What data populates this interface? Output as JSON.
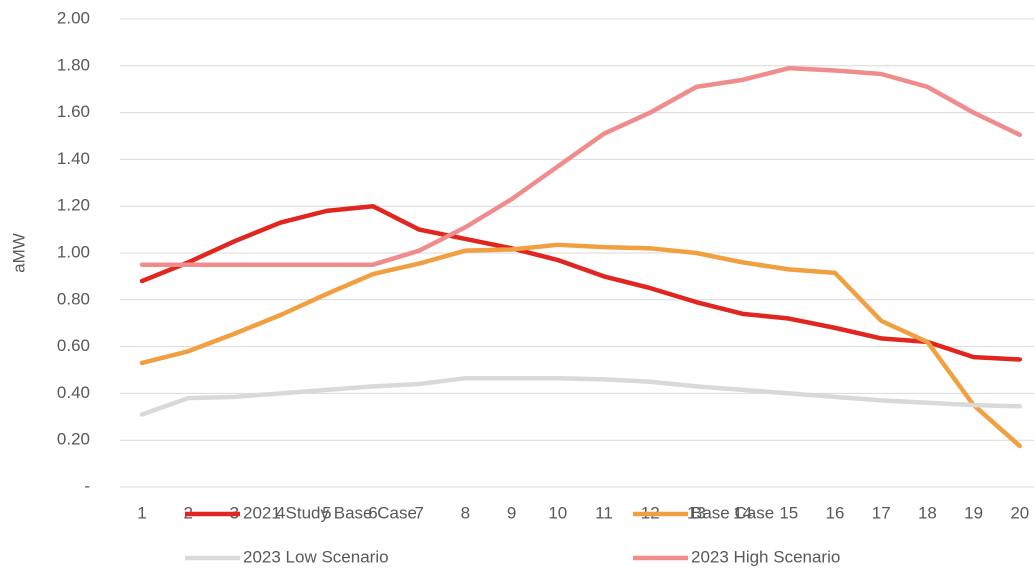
{
  "chart_data": {
    "type": "line",
    "y_label": "aMW",
    "categories": [
      "1",
      "2",
      "3",
      "4",
      "5",
      "6",
      "7",
      "8",
      "9",
      "10",
      "11",
      "12",
      "13",
      "14",
      "15",
      "16",
      "17",
      "18",
      "19",
      "20"
    ],
    "series": [
      {
        "name": "2021 Study Base Case",
        "color": "#e0261e",
        "values": [
          0.88,
          0.96,
          1.05,
          1.13,
          1.18,
          1.2,
          1.1,
          1.06,
          1.02,
          0.97,
          0.9,
          0.85,
          0.79,
          0.74,
          0.72,
          0.68,
          0.635,
          0.62,
          0.555,
          0.545
        ]
      },
      {
        "name": "Base Case",
        "color": "#f0a040",
        "values": [
          0.53,
          0.58,
          0.655,
          0.735,
          0.825,
          0.91,
          0.955,
          1.01,
          1.015,
          1.035,
          1.025,
          1.02,
          1.0,
          0.96,
          0.93,
          0.915,
          0.71,
          0.62,
          0.35,
          0.175
        ]
      },
      {
        "name": "2023 Low Scenario",
        "color": "#d9d9d9",
        "values": [
          0.31,
          0.38,
          0.385,
          0.4,
          0.415,
          0.43,
          0.44,
          0.465,
          0.465,
          0.465,
          0.46,
          0.45,
          0.43,
          0.415,
          0.4,
          0.385,
          0.37,
          0.36,
          0.35,
          0.345
        ]
      },
      {
        "name": "2023 High Scenario",
        "color": "#f08c8c",
        "values": [
          0.95,
          0.95,
          0.95,
          0.95,
          0.95,
          0.95,
          1.01,
          1.11,
          1.23,
          1.37,
          1.51,
          1.6,
          1.71,
          1.74,
          1.79,
          1.78,
          1.765,
          1.71,
          1.6,
          1.505
        ]
      }
    ],
    "ylim": [
      0,
      2
    ],
    "yticks": [
      {
        "value": 0,
        "label": "-"
      },
      {
        "value": 0.2,
        "label": "0.20"
      },
      {
        "value": 0.4,
        "label": "0.40"
      },
      {
        "value": 0.6,
        "label": "0.60"
      },
      {
        "value": 0.8,
        "label": "0.80"
      },
      {
        "value": 1,
        "label": "1.00"
      },
      {
        "value": 1.2,
        "label": "1.20"
      },
      {
        "value": 1.4,
        "label": "1.40"
      },
      {
        "value": 1.6,
        "label": "1.60"
      },
      {
        "value": 1.8,
        "label": "1.80"
      },
      {
        "value": 2,
        "label": "2.00"
      }
    ],
    "grid": true,
    "legend": "bottom"
  }
}
